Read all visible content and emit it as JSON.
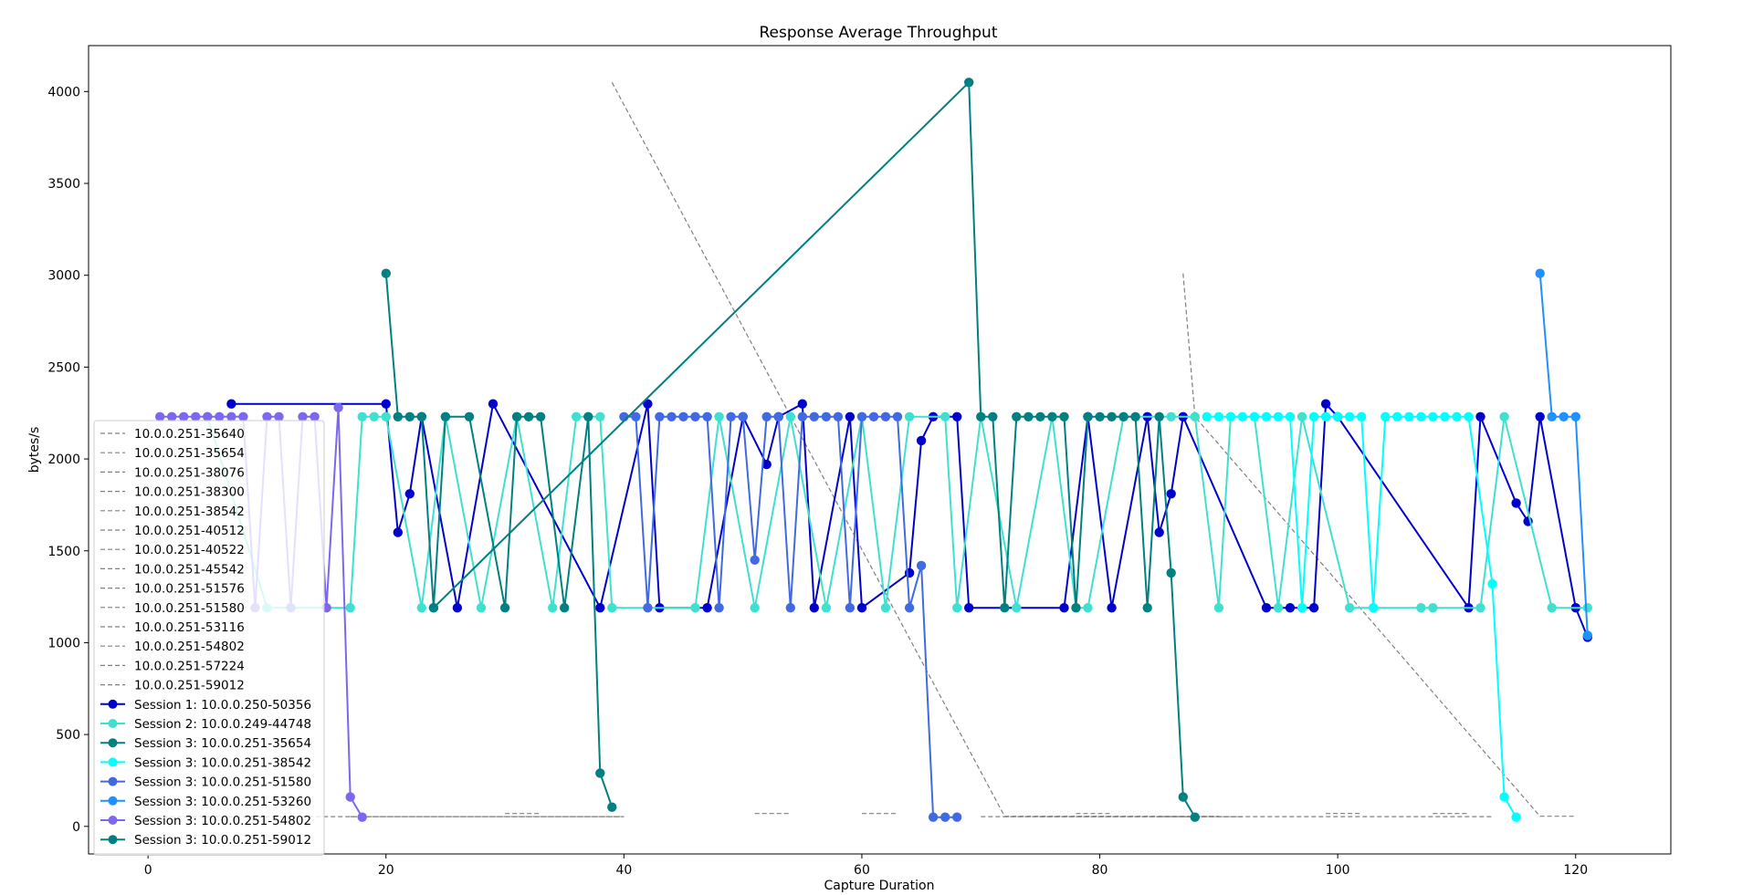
{
  "chart_data": {
    "type": "line",
    "title": "Response Average Throughput",
    "xlabel": "Capture Duration",
    "ylabel": "bytes/s",
    "xlim": [
      -5,
      128
    ],
    "ylim": [
      -150,
      4250
    ],
    "xticks": [
      0,
      20,
      40,
      60,
      80,
      100,
      120
    ],
    "yticks": [
      0,
      500,
      1000,
      1500,
      2000,
      2500,
      3000,
      3500,
      4000
    ],
    "grid": false,
    "legend_placement": "lower-left",
    "dashed_series": [
      {
        "name": "10.0.0.251-35640",
        "color": "#808080",
        "x": [
          0,
          40
        ],
        "y": [
          53,
          53
        ]
      },
      {
        "name": "10.0.0.251-35654",
        "color": "#808080",
        "x": [
          17,
          40
        ],
        "y": [
          53,
          53
        ]
      },
      {
        "name": "10.0.0.251-38076",
        "color": "#808080",
        "x": [
          30,
          33
        ],
        "y": [
          70,
          70
        ]
      },
      {
        "name": "10.0.0.251-38300",
        "color": "#808080",
        "x": [
          51,
          54
        ],
        "y": [
          70,
          70
        ]
      },
      {
        "name": "10.0.0.251-38542",
        "color": "#808080",
        "x": [
          60,
          63
        ],
        "y": [
          70,
          70
        ]
      },
      {
        "name": "10.0.0.251-40512",
        "color": "#808080",
        "x": [
          39,
          72,
          90
        ],
        "y": [
          4050,
          55,
          55
        ]
      },
      {
        "name": "10.0.0.251-40522",
        "color": "#808080",
        "x": [
          78,
          81
        ],
        "y": [
          70,
          70
        ]
      },
      {
        "name": "10.0.0.251-45542",
        "color": "#808080",
        "x": [
          99,
          102
        ],
        "y": [
          70,
          70
        ]
      },
      {
        "name": "10.0.0.251-51576",
        "color": "#808080",
        "x": [
          108,
          111
        ],
        "y": [
          70,
          70
        ]
      },
      {
        "name": "10.0.0.251-51580",
        "color": "#808080",
        "x": [
          72,
          113
        ],
        "y": [
          53,
          53
        ]
      },
      {
        "name": "10.0.0.251-53116",
        "color": "#808080",
        "x": [
          75,
          92
        ],
        "y": [
          53,
          53
        ]
      },
      {
        "name": "10.0.0.251-54802",
        "color": "#808080",
        "x": [
          85,
          92
        ],
        "y": [
          53,
          53
        ]
      },
      {
        "name": "10.0.0.251-57224",
        "color": "#808080",
        "x": [
          87,
          88,
          117,
          120
        ],
        "y": [
          3010,
          2230,
          55,
          55
        ]
      },
      {
        "name": "10.0.0.251-59012",
        "color": "#808080",
        "x": [
          70,
          88
        ],
        "y": [
          53,
          53
        ]
      }
    ],
    "series": [
      {
        "name": "Session 1: 10.0.0.250-50356",
        "color": "#0000cd",
        "x": [
          7,
          20,
          21,
          22,
          23,
          26,
          29,
          38,
          42,
          43,
          47,
          50,
          52,
          53,
          55,
          56,
          59,
          60,
          64,
          65,
          66,
          68,
          69,
          77,
          79,
          81,
          84,
          85,
          86,
          87,
          94,
          96,
          98,
          99,
          100,
          111,
          112,
          115,
          116,
          117,
          120,
          121
        ],
        "y": [
          2300,
          2300,
          1600,
          1810,
          2230,
          1190,
          2300,
          1190,
          2300,
          1190,
          1190,
          2230,
          1970,
          2230,
          2300,
          1190,
          2230,
          1190,
          1380,
          2100,
          2230,
          2230,
          1190,
          1190,
          2230,
          1190,
          2230,
          1600,
          1810,
          2230,
          1190,
          1190,
          1190,
          2300,
          2230,
          1190,
          2230,
          1760,
          1660,
          2230,
          1190,
          1030
        ]
      },
      {
        "name": "Session 2: 10.0.0.249-44748",
        "color": "#40e0d0",
        "x": [
          5,
          10,
          17,
          18,
          19,
          20,
          23,
          25,
          28,
          31,
          34,
          36,
          38,
          39,
          46,
          48,
          51,
          54,
          57,
          60,
          62,
          64,
          67,
          68,
          70,
          73,
          76,
          78,
          79,
          82,
          86,
          88,
          90,
          91,
          93,
          95,
          97,
          101,
          103,
          107,
          108,
          112,
          114,
          118,
          121
        ],
        "y": [
          2230,
          1190,
          1190,
          2230,
          2230,
          2230,
          1190,
          2230,
          1190,
          2230,
          1190,
          2230,
          2230,
          1190,
          1190,
          2230,
          1190,
          2230,
          1190,
          2230,
          1190,
          2230,
          2230,
          1190,
          2230,
          1190,
          2230,
          1190,
          1190,
          2230,
          2230,
          2230,
          1190,
          2230,
          2230,
          1190,
          2230,
          1190,
          1190,
          1190,
          1190,
          1190,
          2230,
          1190,
          1190
        ]
      },
      {
        "name": "Session 3: 10.0.0.251-35654",
        "color": "#008080",
        "x": [
          24,
          25,
          27,
          30,
          31,
          32,
          33,
          35,
          37,
          38,
          39
        ],
        "y": [
          1190,
          2230,
          2230,
          1190,
          2230,
          2230,
          2230,
          1190,
          2230,
          290,
          105
        ]
      },
      {
        "name": "Session 3: 10.0.0.251-38542",
        "color": "#00ffff",
        "x": [
          89,
          90,
          91,
          92,
          93,
          94,
          95,
          96,
          97,
          98,
          99,
          100,
          101,
          102,
          103,
          104,
          105,
          106,
          107,
          108,
          109,
          110,
          111,
          113,
          114,
          115
        ],
        "y": [
          2230,
          2230,
          2230,
          2230,
          2230,
          2230,
          2230,
          2230,
          1190,
          2230,
          2230,
          2230,
          2230,
          2230,
          1190,
          2230,
          2230,
          2230,
          2230,
          2230,
          2230,
          2230,
          2230,
          1320,
          160,
          50
        ]
      },
      {
        "name": "Session 3: 10.0.0.251-51580",
        "color": "#4169e1",
        "x": [
          40,
          41,
          42,
          43,
          44,
          45,
          46,
          47,
          48,
          49,
          50,
          51,
          52,
          53,
          54,
          55,
          56,
          57,
          58,
          59,
          60,
          61,
          62,
          63,
          64,
          65,
          66,
          67,
          68
        ],
        "y": [
          2230,
          2230,
          1190,
          2230,
          2230,
          2230,
          2230,
          2230,
          1190,
          2230,
          2230,
          1450,
          2230,
          2230,
          1190,
          2230,
          2230,
          2230,
          2230,
          1190,
          2230,
          2230,
          2230,
          2230,
          1190,
          1420,
          50,
          50,
          50
        ]
      },
      {
        "name": "Session 3: 10.0.0.251-53260",
        "color": "#1e90ff",
        "x": [
          117,
          118,
          119,
          120,
          121
        ],
        "y": [
          3010,
          2230,
          2230,
          2230,
          1040
        ]
      },
      {
        "name": "Session 3: 10.0.0.251-54802",
        "color": "#7b68ee",
        "x": [
          1,
          2,
          3,
          4,
          5,
          6,
          7,
          8,
          9,
          10,
          11,
          12,
          13,
          14,
          15,
          16,
          17,
          18
        ],
        "y": [
          2230,
          2230,
          2230,
          2230,
          2230,
          2230,
          2230,
          2230,
          1190,
          2230,
          2230,
          1190,
          2230,
          2230,
          1190,
          2280,
          160,
          50
        ]
      },
      {
        "name": "Session 3: 10.0.0.251-59012",
        "color": "#008080",
        "x": [
          20,
          21,
          22,
          23,
          24,
          69,
          70,
          71,
          72,
          73,
          74,
          75,
          76,
          77,
          78,
          79,
          80,
          81,
          82,
          83,
          84,
          85,
          86,
          87,
          88
        ],
        "y": [
          3010,
          2230,
          2230,
          2230,
          1190,
          4050,
          2230,
          2230,
          1190,
          2230,
          2230,
          2230,
          2230,
          2230,
          1190,
          2230,
          2230,
          2230,
          2230,
          2230,
          1190,
          2230,
          1380,
          160,
          50
        ]
      }
    ]
  }
}
